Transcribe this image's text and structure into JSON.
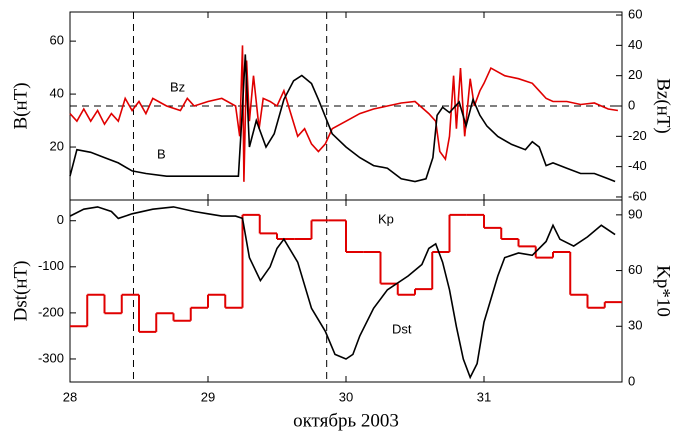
{
  "chart_data": [
    {
      "type": "line",
      "ylabel": "B(нТ)",
      "y2label": "Bz(нТ)",
      "xlim": [
        28,
        32
      ],
      "ylim": [
        0,
        71
      ],
      "yticks": [
        20,
        40,
        60
      ],
      "y2lim": [
        -62,
        62
      ],
      "y2ticks": [
        -60,
        -40,
        -20,
        0,
        20,
        40,
        60
      ],
      "vlines": [
        28.46,
        29.86
      ],
      "y2_refline": 0,
      "series": [
        {
          "name": "Bz",
          "color": "#e00000",
          "axis": "y2",
          "x": [
            28.0,
            28.05,
            28.1,
            28.15,
            28.2,
            28.25,
            28.3,
            28.35,
            28.4,
            28.45,
            28.5,
            28.55,
            28.6,
            28.7,
            28.8,
            28.85,
            28.9,
            29.0,
            29.1,
            29.2,
            29.23,
            29.25,
            29.26,
            29.28,
            29.3,
            29.33,
            29.37,
            29.4,
            29.45,
            29.5,
            29.55,
            29.6,
            29.65,
            29.7,
            29.75,
            29.8,
            29.85,
            29.9,
            30.0,
            30.1,
            30.2,
            30.3,
            30.4,
            30.5,
            30.6,
            30.65,
            30.68,
            30.72,
            30.75,
            30.78,
            30.8,
            30.83,
            30.86,
            30.9,
            30.93,
            30.97,
            31.0,
            31.05,
            31.15,
            31.25,
            31.35,
            31.4,
            31.45,
            31.5,
            31.6,
            31.7,
            31.8,
            31.9,
            31.97
          ],
          "values": [
            -5,
            -10,
            -2,
            -10,
            -3,
            -12,
            -5,
            -10,
            5,
            -3,
            3,
            -5,
            5,
            0,
            -3,
            5,
            0,
            3,
            5,
            0,
            -20,
            40,
            -50,
            30,
            -10,
            20,
            -15,
            5,
            3,
            0,
            10,
            -5,
            -20,
            -15,
            -25,
            -30,
            -25,
            -15,
            -10,
            -5,
            -2,
            0,
            2,
            3,
            -5,
            -10,
            -30,
            -35,
            -20,
            20,
            -15,
            25,
            -20,
            18,
            0,
            10,
            15,
            25,
            20,
            18,
            15,
            10,
            5,
            3,
            3,
            1,
            2,
            -2,
            -3
          ]
        },
        {
          "name": "B",
          "color": "#000000",
          "x": [
            28.0,
            28.05,
            28.15,
            28.25,
            28.35,
            28.45,
            28.55,
            28.7,
            28.85,
            29.0,
            29.15,
            29.22,
            29.25,
            29.27,
            29.3,
            29.35,
            29.42,
            29.48,
            29.55,
            29.62,
            29.68,
            29.75,
            29.8,
            29.9,
            30.0,
            30.1,
            30.2,
            30.3,
            30.4,
            30.5,
            30.58,
            30.63,
            30.66,
            30.7,
            30.75,
            30.82,
            30.87,
            30.92,
            30.97,
            31.02,
            31.1,
            31.2,
            31.3,
            31.35,
            31.4,
            31.45,
            31.5,
            31.6,
            31.7,
            31.8,
            31.9,
            31.95
          ],
          "values": [
            9,
            19,
            18,
            16,
            14,
            11,
            10,
            9,
            9,
            9,
            9,
            9,
            35,
            55,
            20,
            30,
            20,
            25,
            38,
            45,
            47,
            44,
            38,
            25,
            20,
            16,
            13,
            12,
            8,
            7,
            8,
            16,
            32,
            35,
            33,
            37,
            28,
            38,
            32,
            28,
            24,
            21,
            19,
            22,
            20,
            13,
            14,
            12,
            10,
            10,
            8,
            7
          ]
        }
      ]
    },
    {
      "type": "line",
      "ylabel": "Dst(нТ)",
      "y2label": "Kp*10",
      "xlabel": "октябрь 2003",
      "xlim": [
        28,
        32
      ],
      "xticks": [
        28,
        29,
        30,
        31
      ],
      "ylim": [
        -350,
        45
      ],
      "yticks": [
        -300,
        -200,
        -100,
        0
      ],
      "y2lim": [
        0,
        98
      ],
      "y2ticks": [
        0,
        30,
        60,
        90
      ],
      "series": [
        {
          "name": "Kp",
          "color": "#e00000",
          "axis": "y2",
          "step": true,
          "x": [
            28.0,
            28.125,
            28.25,
            28.375,
            28.5,
            28.625,
            28.75,
            28.875,
            29.0,
            29.125,
            29.25,
            29.375,
            29.5,
            29.625,
            29.75,
            29.875,
            30.0,
            30.125,
            30.25,
            30.375,
            30.5,
            30.625,
            30.75,
            30.875,
            31.0,
            31.125,
            31.25,
            31.375,
            31.5,
            31.625,
            31.75,
            31.875
          ],
          "values": [
            30,
            47,
            37,
            47,
            27,
            37,
            33,
            40,
            47,
            40,
            90,
            80,
            77,
            77,
            87,
            87,
            70,
            70,
            53,
            47,
            50,
            70,
            90,
            90,
            83,
            77,
            73,
            67,
            70,
            47,
            40,
            43
          ]
        },
        {
          "name": "Dst",
          "color": "#000000",
          "x": [
            28.0,
            28.1,
            28.2,
            28.3,
            28.35,
            28.45,
            28.6,
            28.75,
            28.9,
            29.0,
            29.1,
            29.2,
            29.25,
            29.3,
            29.38,
            29.45,
            29.5,
            29.55,
            29.65,
            29.75,
            29.85,
            29.92,
            30.0,
            30.05,
            30.1,
            30.2,
            30.3,
            30.45,
            30.55,
            30.6,
            30.65,
            30.7,
            30.75,
            30.8,
            30.85,
            30.9,
            30.95,
            31.0,
            31.05,
            31.1,
            31.15,
            31.25,
            31.35,
            31.45,
            31.5,
            31.55,
            31.65,
            31.75,
            31.85,
            31.95
          ],
          "values": [
            10,
            25,
            30,
            20,
            5,
            15,
            25,
            30,
            20,
            15,
            10,
            10,
            5,
            -80,
            -130,
            -100,
            -60,
            -40,
            -90,
            -190,
            -240,
            -290,
            -300,
            -290,
            -250,
            -190,
            -150,
            -120,
            -95,
            -60,
            -50,
            -90,
            -150,
            -230,
            -300,
            -340,
            -310,
            -220,
            -170,
            -120,
            -80,
            -70,
            -75,
            -45,
            -10,
            -40,
            -55,
            -35,
            -10,
            -30
          ]
        }
      ]
    }
  ]
}
